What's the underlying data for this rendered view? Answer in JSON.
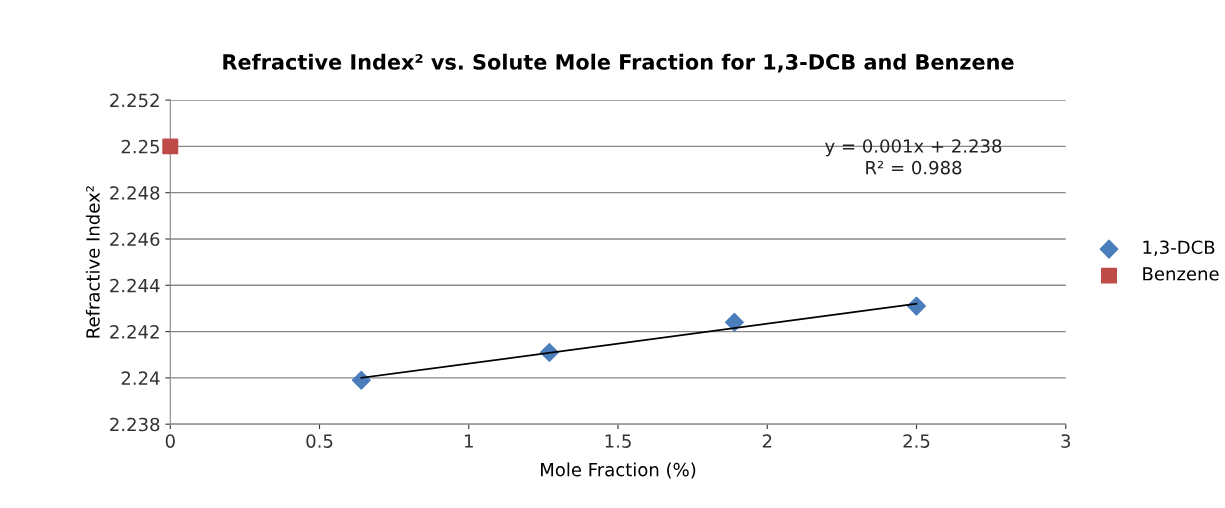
{
  "chart_data": {
    "type": "scatter",
    "title": "Refractive Index² vs. Solute Mole Fraction for 1,3-DCB and Benzene",
    "xlabel": "Mole Fraction (%)",
    "ylabel": "Refractive Index²",
    "series": [
      {
        "name": "1,3-DCB",
        "color": "#4a7ebb",
        "marker": "diamond",
        "x": [
          0.64,
          1.27,
          1.89,
          2.5
        ],
        "values": [
          2.2399,
          2.2411,
          2.2424,
          2.2431
        ]
      },
      {
        "name": "Benzene",
        "color": "#be4b48",
        "marker": "square",
        "x": [
          0
        ],
        "values": [
          2.25
        ]
      },
      {
        "type": "line",
        "color": "#000000",
        "x": [
          0.64,
          2.5
        ],
        "values": [
          2.24,
          2.2432
        ]
      }
    ],
    "annotations": [
      "y = 0.001x + 2.238\nR² = 0.988"
    ],
    "xlim": [
      0,
      3
    ],
    "xticks": [
      0,
      0.5,
      1,
      1.5,
      2,
      2.5,
      3
    ],
    "ylim": [
      2.238,
      2.252
    ],
    "yticks": [
      2.238,
      2.24,
      2.242,
      2.244,
      2.246,
      2.248,
      2.25,
      2.252
    ],
    "grid": "y",
    "legend": "right"
  }
}
